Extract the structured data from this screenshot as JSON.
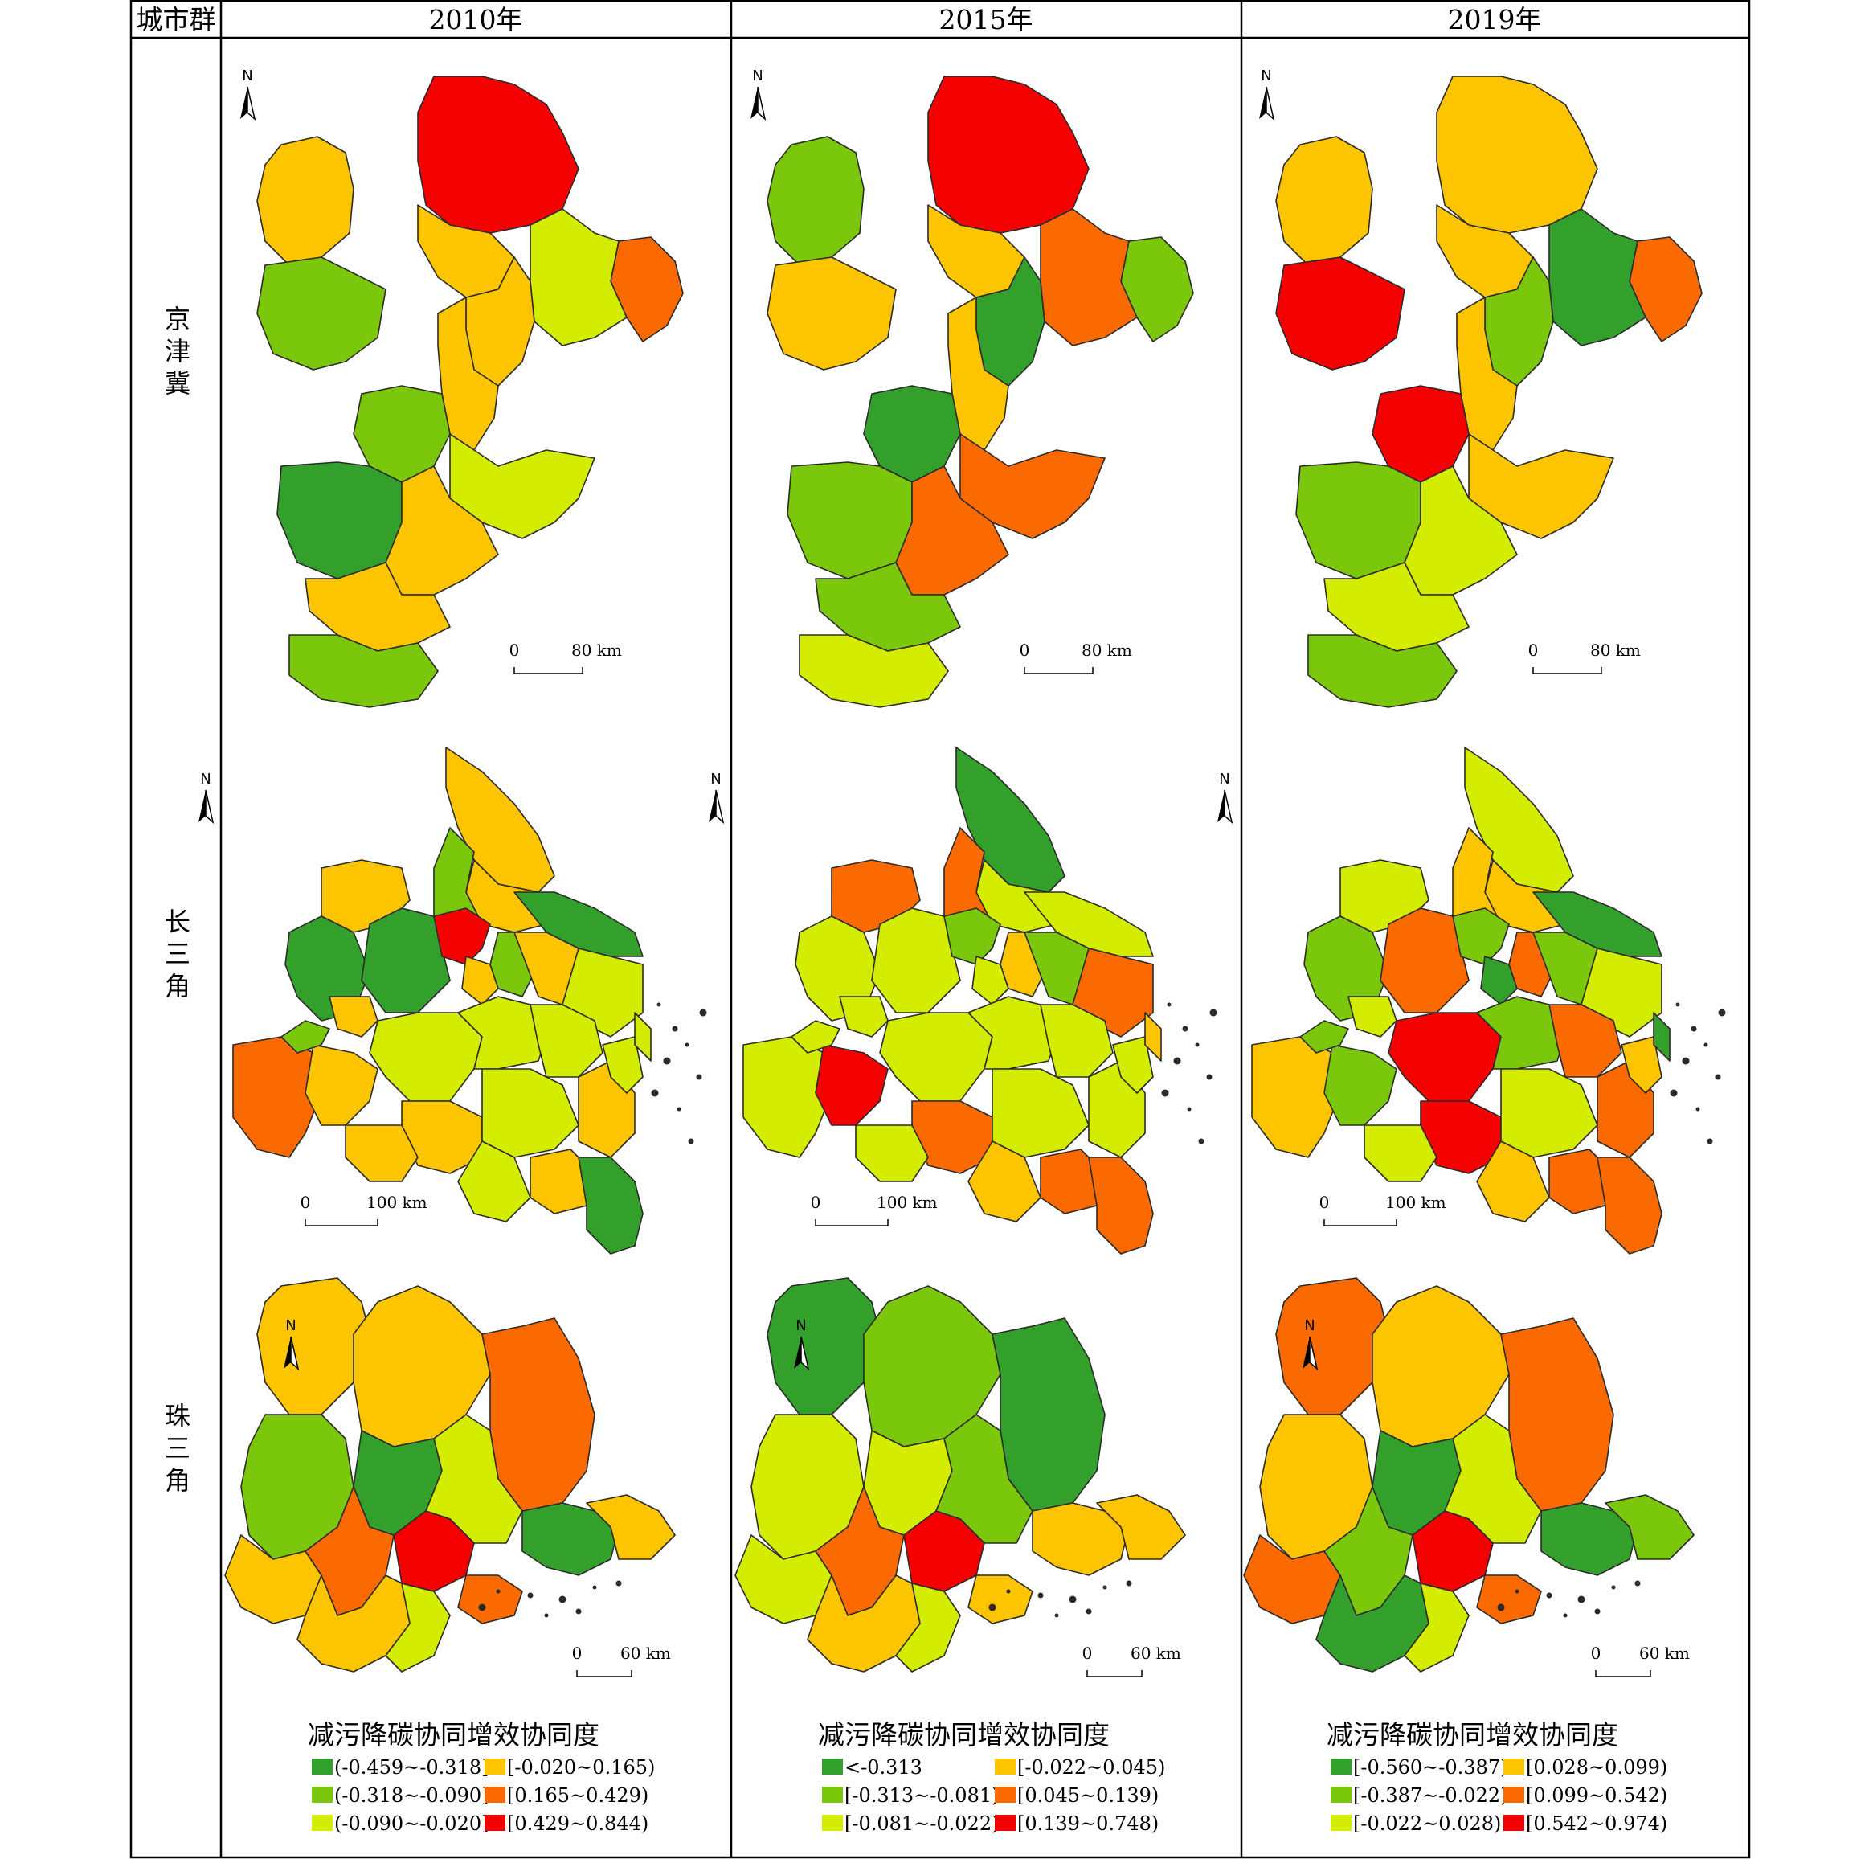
{
  "table": {
    "corner_header": "城市群",
    "year_headers": [
      "2010年",
      "2015年",
      "2019年"
    ],
    "row_labels": [
      "京津冀",
      "长三角",
      "珠三角"
    ]
  },
  "colors": {
    "c1": "#33a02c",
    "c2": "#7ac70c",
    "c3": "#d4ec00",
    "c4": "#fdc400",
    "c5": "#fb6a00",
    "c6": "#f40000"
  },
  "scale_bars": {
    "jjj": [
      "0",
      "80 km"
    ],
    "csj": [
      "0",
      "100 km"
    ],
    "zsj": [
      "0",
      "60 km"
    ]
  },
  "north_label": "N",
  "legends": [
    {
      "title": "减污降碳协同增效协同度",
      "items": [
        "(-0.459~-0.318]",
        "(-0.318~-0.090]",
        "(-0.090~-0.020]",
        "[-0.020~0.165)",
        "[0.165~0.429)",
        "[0.429~0.844)"
      ]
    },
    {
      "title": "减污降碳协同增效协同度",
      "items": [
        "<-0.313",
        "[-0.313~-0.081)",
        "[-0.081~-0.022)",
        "[-0.022~0.045)",
        "[0.045~0.139)",
        "[0.139~0.748)"
      ]
    },
    {
      "title": "减污降碳协同增效协同度",
      "items": [
        "[-0.560~-0.387)",
        "[-0.387~-0.022)",
        "[-0.022~0.028)",
        "[0.028~0.099)",
        "[0.099~0.542)",
        "[0.542~0.974)"
      ]
    }
  ],
  "map_data": {
    "jjj": {
      "2010": [
        "c4",
        "c6",
        "c5",
        "c4",
        "c4",
        "c2",
        "c3",
        "c4",
        "c2",
        "c3",
        "c1",
        "c4",
        "c4",
        "c2"
      ],
      "2015": [
        "c2",
        "c6",
        "c2",
        "c4",
        "c1",
        "c4",
        "c5",
        "c4",
        "c1",
        "c5",
        "c2",
        "c5",
        "c2",
        "c3"
      ],
      "2019": [
        "c4",
        "c4",
        "c5",
        "c4",
        "c2",
        "c6",
        "c1",
        "c4",
        "c6",
        "c4",
        "c2",
        "c3",
        "c3",
        "c2"
      ]
    },
    "csj": {
      "2010": [
        "c4",
        "c4",
        "c2",
        "c1",
        "c4",
        "c1",
        "c1",
        "c6",
        "c4",
        "c2",
        "c4",
        "c3",
        "c5",
        "c4",
        "c3",
        "c3",
        "c3",
        "c4",
        "c3",
        "c4",
        "c3",
        "c4",
        "c1",
        "c2",
        "c4",
        "c3",
        "c4",
        "c3"
      ],
      "2015": [
        "c1",
        "c3",
        "c5",
        "c3",
        "c5",
        "c3",
        "c3",
        "c2",
        "c3",
        "c4",
        "c2",
        "c5",
        "c3",
        "c6",
        "c3",
        "c3",
        "c3",
        "c5",
        "c3",
        "c3",
        "c4",
        "c5",
        "c5",
        "c3",
        "c3",
        "c3",
        "c3",
        "c4"
      ],
      "2019": [
        "c3",
        "c4",
        "c4",
        "c1",
        "c3",
        "c2",
        "c5",
        "c2",
        "c1",
        "c5",
        "c2",
        "c3",
        "c4",
        "c2",
        "c6",
        "c2",
        "c5",
        "c6",
        "c3",
        "c5",
        "c4",
        "c5",
        "c5",
        "c2",
        "c3",
        "c4",
        "c3",
        "c1"
      ]
    },
    "zsj": {
      "2010": [
        "c4",
        "c4",
        "c5",
        "c2",
        "c4",
        "c1",
        "c3",
        "c5",
        "c1",
        "c6",
        "c4",
        "c3",
        "c5",
        "c4"
      ],
      "2015": [
        "c1",
        "c2",
        "c1",
        "c3",
        "c3",
        "c3",
        "c2",
        "c5",
        "c4",
        "c6",
        "c4",
        "c3",
        "c4",
        "c4"
      ],
      "2019": [
        "c5",
        "c4",
        "c5",
        "c4",
        "c5",
        "c1",
        "c3",
        "c2",
        "c1",
        "c6",
        "c1",
        "c3",
        "c5",
        "c2"
      ]
    }
  }
}
